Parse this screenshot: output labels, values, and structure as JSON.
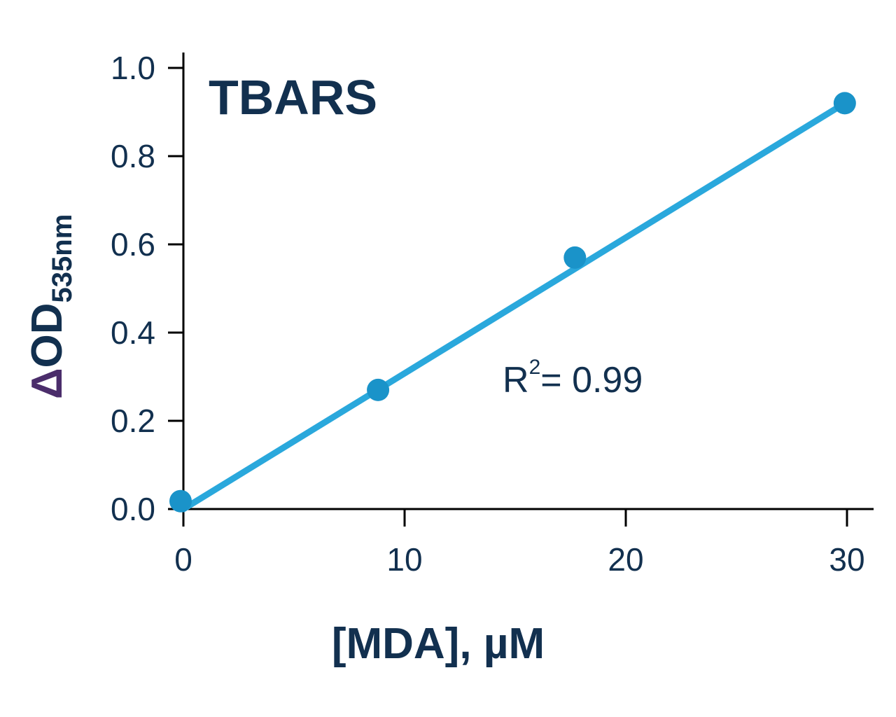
{
  "chart_data": {
    "type": "scatter",
    "title": "TBARS",
    "xlabel": "[MDA], µM",
    "ylabel": {
      "delta_symbol": "Δ",
      "main": "OD",
      "subscript": "535nm"
    },
    "xlim": [
      0,
      30
    ],
    "ylim": [
      0,
      1.0
    ],
    "x_ticks": [
      "0",
      "10",
      "20",
      "30"
    ],
    "y_ticks": [
      "0.0",
      "0.2",
      "0.4",
      "0.6",
      "0.8",
      "1.0"
    ],
    "grid": false,
    "series": [
      {
        "x": [
          0,
          8.8,
          17.7,
          29.9
        ],
        "y": [
          0.01,
          0.27,
          0.57,
          0.92
        ]
      }
    ],
    "fit_line": {
      "x": [
        0,
        29.9
      ],
      "y": [
        0.0,
        0.92
      ]
    },
    "annotation": {
      "text_main": "R",
      "text_sup": "2",
      "text_rest": "= 0.99"
    },
    "colors": {
      "point": "#1a93c9",
      "line": "#2aa8dc",
      "axis": "#000000",
      "text": "#12304f",
      "delta": "#4b2d6b"
    }
  }
}
